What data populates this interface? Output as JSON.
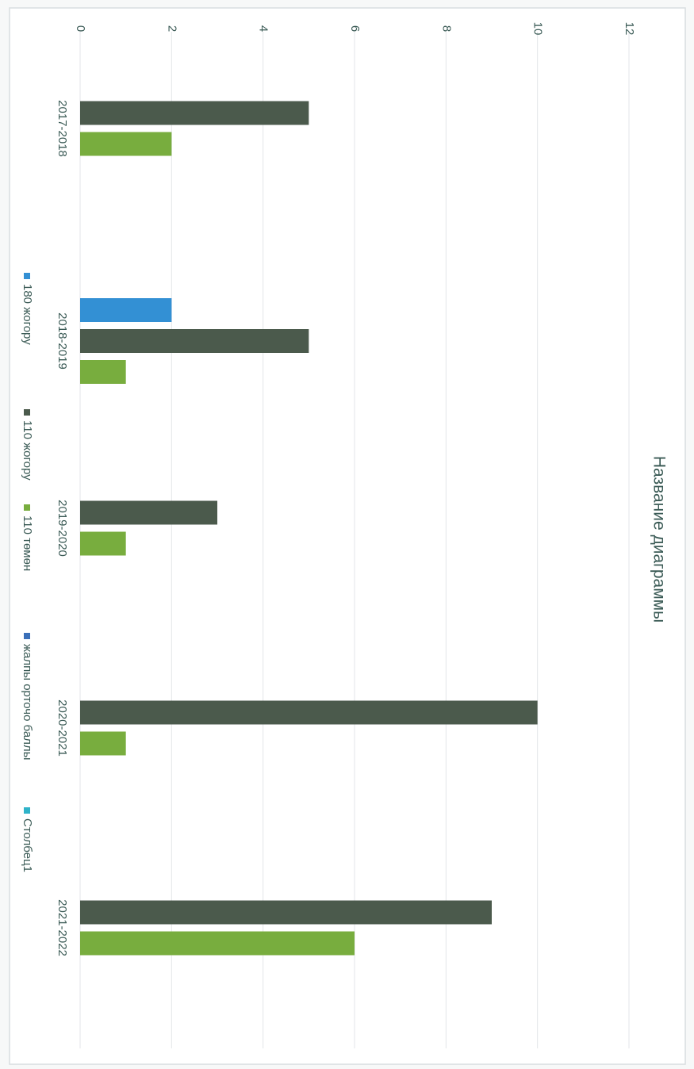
{
  "chart_data": {
    "type": "bar",
    "title": "Название диаграммы",
    "categories": [
      "2017-2018",
      "2018-2019",
      "2019-2020",
      "2020-2021",
      "2021-2022"
    ],
    "series": [
      {
        "name": "180 жогору",
        "color": "#3390d4",
        "values": [
          null,
          2,
          null,
          null,
          null
        ]
      },
      {
        "name": "110 жогору",
        "color": "#4b5a4c",
        "values": [
          5,
          5,
          3,
          10,
          9
        ]
      },
      {
        "name": "110 төмөн",
        "color": "#78ad3e",
        "values": [
          2,
          1,
          1,
          1,
          6
        ]
      },
      {
        "name": "жалпы орточо баллы",
        "color": "#3a6fb8",
        "values": [
          null,
          null,
          null,
          null,
          null
        ]
      },
      {
        "name": "Столбец1",
        "color": "#2fb3c9",
        "values": [
          null,
          null,
          null,
          null,
          null
        ]
      }
    ],
    "value_axis": {
      "min": 0,
      "max": 12,
      "step": 2,
      "ticks": [
        "0",
        "2",
        "4",
        "6",
        "8",
        "10",
        "12"
      ]
    },
    "grid": true,
    "legend_position": "bottom"
  }
}
